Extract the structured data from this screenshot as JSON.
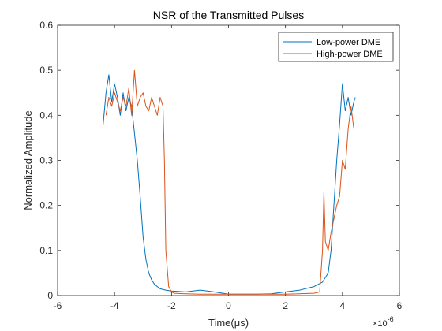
{
  "chart_data": {
    "type": "line",
    "title": "NSR of the Transmitted Pulses",
    "xlabel": "Time(μs)",
    "ylabel": "Normalized Amplitude",
    "x_exponent_label": "×10",
    "x_exponent_power": "-6",
    "xlim": [
      -6,
      6
    ],
    "ylim": [
      0,
      0.6
    ],
    "xticks": [
      -6,
      -4,
      -2,
      0,
      2,
      4,
      6
    ],
    "xtick_labels": [
      "-6",
      "-4",
      "-2",
      "0",
      "2",
      "4",
      "6"
    ],
    "yticks": [
      0,
      0.1,
      0.2,
      0.3,
      0.4,
      0.5,
      0.6
    ],
    "ytick_labels": [
      "0",
      "0.1",
      "0.2",
      "0.3",
      "0.4",
      "0.5",
      "0.6"
    ],
    "grid": false,
    "legend_position": "top-right",
    "series": [
      {
        "name": "Low-power DME",
        "color": "#0072BD",
        "x": [
          -4.4,
          -4.3,
          -4.2,
          -4.1,
          -4.0,
          -3.9,
          -3.8,
          -3.7,
          -3.6,
          -3.5,
          -3.4,
          -3.3,
          -3.2,
          -3.1,
          -3.0,
          -2.9,
          -2.8,
          -2.7,
          -2.6,
          -2.5,
          -2.4,
          -2.2,
          -2.0,
          -1.5,
          -1.0,
          -0.5,
          0.0,
          0.5,
          1.0,
          1.5,
          2.0,
          2.5,
          3.0,
          3.3,
          3.5,
          3.6,
          3.7,
          3.8,
          3.9,
          4.0,
          4.1,
          4.2,
          4.3,
          4.4,
          4.45
        ],
        "y": [
          0.38,
          0.45,
          0.49,
          0.43,
          0.47,
          0.44,
          0.4,
          0.45,
          0.41,
          0.44,
          0.42,
          0.36,
          0.3,
          0.22,
          0.13,
          0.08,
          0.05,
          0.035,
          0.025,
          0.02,
          0.015,
          0.012,
          0.01,
          0.008,
          0.012,
          0.008,
          0.003,
          0.003,
          0.003,
          0.004,
          0.008,
          0.012,
          0.02,
          0.03,
          0.05,
          0.1,
          0.2,
          0.3,
          0.38,
          0.47,
          0.41,
          0.44,
          0.4,
          0.43,
          0.44
        ]
      },
      {
        "name": "High-power DME",
        "color": "#D95319",
        "x": [
          -4.3,
          -4.2,
          -4.1,
          -4.0,
          -3.9,
          -3.8,
          -3.7,
          -3.6,
          -3.5,
          -3.4,
          -3.3,
          -3.2,
          -3.1,
          -3.0,
          -2.9,
          -2.8,
          -2.7,
          -2.6,
          -2.5,
          -2.4,
          -2.3,
          -2.25,
          -2.2,
          -2.1,
          -2.0,
          -1.9,
          -1.5,
          -1.0,
          -0.5,
          0.0,
          0.5,
          1.0,
          1.5,
          2.0,
          2.5,
          3.0,
          3.2,
          3.3,
          3.35,
          3.4,
          3.5,
          3.6,
          3.7,
          3.8,
          3.9,
          4.0,
          4.1,
          4.2,
          4.3,
          4.4
        ],
        "y": [
          0.4,
          0.44,
          0.42,
          0.45,
          0.43,
          0.41,
          0.44,
          0.42,
          0.46,
          0.4,
          0.5,
          0.42,
          0.44,
          0.45,
          0.42,
          0.41,
          0.44,
          0.42,
          0.4,
          0.44,
          0.42,
          0.3,
          0.1,
          0.02,
          0.008,
          0.005,
          0.004,
          0.003,
          0.003,
          0.003,
          0.003,
          0.003,
          0.003,
          0.003,
          0.004,
          0.005,
          0.008,
          0.1,
          0.23,
          0.12,
          0.1,
          0.14,
          0.17,
          0.2,
          0.22,
          0.3,
          0.28,
          0.37,
          0.42,
          0.37
        ]
      }
    ]
  }
}
